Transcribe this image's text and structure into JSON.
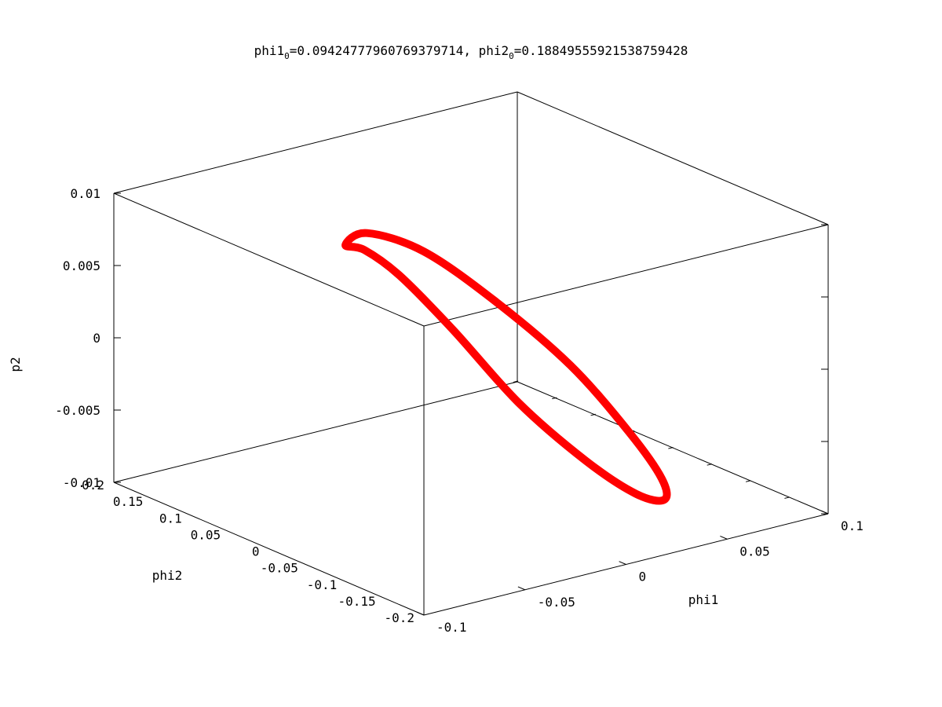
{
  "chart_data": {
    "type": "line",
    "projection": "3d",
    "title_parts": [
      {
        "text": "phi1"
      },
      {
        "text": "0",
        "sub": true
      },
      {
        "text": "=0.09424777960769379714, phi2"
      },
      {
        "text": "0",
        "sub": true
      },
      {
        "text": "=0.18849555921538759428"
      }
    ],
    "axes": {
      "x": {
        "label": "phi1",
        "range": [
          -0.1,
          0.1
        ],
        "ticks": [
          -0.1,
          -0.05,
          0,
          0.05,
          0.1
        ],
        "tick_labels": [
          "-0.1",
          "-0.05",
          "0",
          "0.05",
          "0.1"
        ]
      },
      "y": {
        "label": "phi2",
        "range": [
          -0.2,
          0.2
        ],
        "ticks": [
          -0.2,
          -0.15,
          -0.1,
          -0.05,
          0,
          0.05,
          0.1,
          0.15,
          0.2
        ],
        "tick_labels": [
          "-0.2",
          "-0.15",
          "-0.1",
          "-0.05",
          "0",
          "0.05",
          "0.1",
          "0.15",
          "0.2"
        ]
      },
      "z": {
        "label": "p2",
        "range": [
          -0.01,
          0.01
        ],
        "ticks": [
          -0.01,
          -0.005,
          0,
          0.005,
          0.01
        ],
        "tick_labels": [
          "-0.01",
          "-0.005",
          "0",
          "0.005",
          "0.01"
        ]
      }
    },
    "grid": false,
    "legend": "none",
    "series": [
      {
        "color": "#ff0000",
        "curve": "closed ellipse",
        "points": [
          {
            "phi1": -0.036,
            "phi2": 0.068,
            "p2": 0.0072
          },
          {
            "phi1": -0.04,
            "phi2": 0.033,
            "p2": 0.0078
          },
          {
            "phi1": -0.037,
            "phi2": -0.004,
            "p2": 0.0068
          },
          {
            "phi1": -0.024,
            "phi2": -0.039,
            "p2": 0.0034
          },
          {
            "phi1": -0.003,
            "phi2": -0.069,
            "p2": -0.0017
          },
          {
            "phi1": 0.023,
            "phi2": -0.088,
            "p2": -0.0062
          },
          {
            "phi1": 0.044,
            "phi2": -0.098,
            "p2": -0.009
          },
          {
            "phi1": 0.058,
            "phi2": -0.098,
            "p2": -0.0099
          },
          {
            "phi1": 0.061,
            "phi2": -0.087,
            "p2": -0.0088
          },
          {
            "phi1": 0.053,
            "phi2": -0.066,
            "p2": -0.0058
          },
          {
            "phi1": 0.035,
            "phi2": -0.037,
            "p2": -0.0012
          },
          {
            "phi1": 0.011,
            "phi2": -0.002,
            "p2": 0.0033
          },
          {
            "phi1": -0.012,
            "phi2": 0.03,
            "p2": 0.0068
          },
          {
            "phi1": -0.03,
            "phi2": 0.056,
            "p2": 0.0081
          }
        ]
      }
    ]
  }
}
